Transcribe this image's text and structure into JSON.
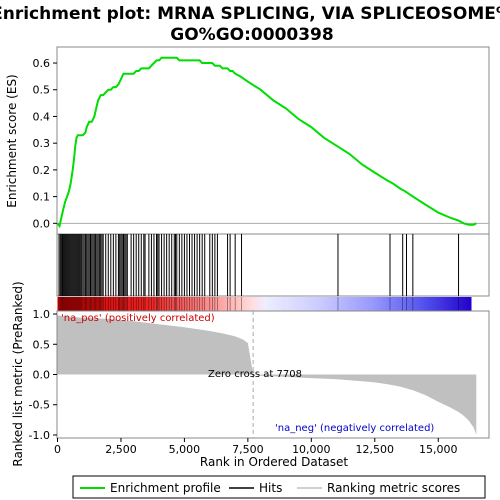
{
  "title_line1": "Enrichment plot: MRNA SPLICING, VIA SPLICEOSOME%",
  "title_line2": "GO%GO:0000398",
  "chart_data": {
    "type": "line",
    "xlabel": "Rank in Ordered Dataset",
    "x_range": [
      0,
      17000
    ],
    "x_ticks": [
      0,
      2500,
      5000,
      7500,
      10000,
      12500,
      15000
    ],
    "x_tick_labels": [
      "0",
      "2,500",
      "5,000",
      "7,500",
      "10,000",
      "12,500",
      "15,000"
    ],
    "top_panel": {
      "ylabel": "Enrichment score (ES)",
      "ylim": [
        -0.04,
        0.66
      ],
      "y_ticks": [
        0.0,
        0.1,
        0.2,
        0.3,
        0.4,
        0.5,
        0.6
      ],
      "y_tick_labels": [
        "0.0",
        "0.1",
        "0.2",
        "0.3",
        "0.4",
        "0.5",
        "0.6"
      ],
      "series": [
        {
          "name": "Enrichment profile",
          "color": "#00dd00",
          "x": [
            0,
            80,
            150,
            220,
            300,
            380,
            450,
            520,
            600,
            650,
            700,
            750,
            800,
            850,
            900,
            1000,
            1100,
            1150,
            1250,
            1350,
            1450,
            1550,
            1600,
            1650,
            1700,
            1800,
            1900,
            2000,
            2100,
            2200,
            2300,
            2400,
            2500,
            2550,
            2600,
            2650,
            2700,
            2800,
            2900,
            3000,
            3100,
            3200,
            3300,
            3400,
            3500,
            3600,
            3700,
            3800,
            3900,
            4000,
            4100,
            4200,
            4300,
            4400,
            4500,
            4600,
            4700,
            4800,
            4900,
            5000,
            5100,
            5200,
            5300,
            5400,
            5500,
            5600,
            5700,
            5800,
            5900,
            6000,
            6100,
            6200,
            6300,
            6400,
            6500,
            6600,
            6700,
            6800,
            6900,
            7000,
            7200,
            7500,
            8000,
            8500,
            9000,
            9500,
            10000,
            10500,
            11000,
            11500,
            12000,
            12500,
            13000,
            13200,
            13500,
            13700,
            14000,
            14500,
            15000,
            15500,
            15800,
            16000,
            16200,
            16400,
            16500
          ],
          "y": [
            0.0,
            -0.01,
            0.02,
            0.05,
            0.08,
            0.1,
            0.12,
            0.15,
            0.2,
            0.24,
            0.29,
            0.32,
            0.33,
            0.33,
            0.33,
            0.33,
            0.34,
            0.36,
            0.38,
            0.38,
            0.4,
            0.44,
            0.46,
            0.47,
            0.48,
            0.48,
            0.49,
            0.5,
            0.5,
            0.51,
            0.51,
            0.52,
            0.54,
            0.55,
            0.56,
            0.56,
            0.56,
            0.56,
            0.56,
            0.56,
            0.57,
            0.57,
            0.58,
            0.58,
            0.58,
            0.58,
            0.59,
            0.6,
            0.61,
            0.61,
            0.62,
            0.62,
            0.62,
            0.62,
            0.62,
            0.62,
            0.62,
            0.61,
            0.61,
            0.61,
            0.61,
            0.61,
            0.61,
            0.61,
            0.61,
            0.61,
            0.6,
            0.6,
            0.6,
            0.6,
            0.6,
            0.59,
            0.59,
            0.59,
            0.58,
            0.58,
            0.58,
            0.57,
            0.57,
            0.56,
            0.55,
            0.53,
            0.5,
            0.46,
            0.43,
            0.39,
            0.36,
            0.32,
            0.29,
            0.26,
            0.22,
            0.19,
            0.16,
            0.15,
            0.13,
            0.12,
            0.1,
            0.07,
            0.04,
            0.02,
            0.01,
            0.0,
            -0.005,
            -0.005,
            0.0
          ]
        }
      ]
    },
    "hits_panel": {
      "legend_label": "Hits",
      "hit_ranks": [
        60,
        110,
        150,
        190,
        220,
        260,
        300,
        340,
        380,
        420,
        460,
        500,
        540,
        580,
        620,
        660,
        700,
        740,
        780,
        820,
        860,
        900,
        950,
        1000,
        1050,
        1100,
        1150,
        1200,
        1250,
        1300,
        1350,
        1400,
        1450,
        1500,
        1550,
        1600,
        1650,
        1700,
        1750,
        1800,
        1900,
        2000,
        2100,
        2200,
        2300,
        2400,
        2450,
        2500,
        2550,
        2600,
        2650,
        2700,
        2750,
        2900,
        3000,
        3100,
        3200,
        3300,
        3400,
        3450,
        3600,
        3700,
        3800,
        3900,
        3950,
        4000,
        4100,
        4200,
        4300,
        4400,
        4500,
        4600,
        4650,
        4700,
        4800,
        4900,
        5000,
        5100,
        5200,
        5300,
        5400,
        5500,
        5600,
        5700,
        5800,
        6000,
        6100,
        6200,
        6300,
        6700,
        6800,
        7000,
        7250,
        11050,
        13100,
        13600,
        13750,
        14000,
        15800
      ]
    },
    "metric_panel": {
      "ylabel": "Ranked list metric (PreRanked)",
      "legend_label": "Ranking metric scores",
      "ylim": [
        -1.05,
        1.05
      ],
      "y_ticks": [
        1.0,
        0.5,
        0.0,
        -0.5,
        -1.0
      ],
      "y_tick_labels": [
        "1.0",
        "0.5",
        "0.0",
        "-0.5",
        "-1.0"
      ],
      "x": [
        0,
        300,
        600,
        1000,
        1500,
        2000,
        3000,
        4000,
        5000,
        6000,
        6500,
        7000,
        7300,
        7500,
        7708,
        8000,
        9000,
        10000,
        11000,
        12000,
        12500,
        13000,
        13500,
        14000,
        14500,
        15000,
        15500,
        15800,
        16000,
        16200,
        16400,
        16500
      ],
      "y": [
        0.98,
        0.96,
        0.95,
        0.94,
        0.93,
        0.92,
        0.88,
        0.83,
        0.78,
        0.72,
        0.68,
        0.63,
        0.58,
        0.52,
        0.0,
        -0.02,
        -0.04,
        -0.06,
        -0.08,
        -0.11,
        -0.13,
        -0.16,
        -0.2,
        -0.26,
        -0.34,
        -0.45,
        -0.55,
        -0.62,
        -0.68,
        -0.76,
        -0.88,
        -1.0
      ],
      "zero_cross_label": "Zero cross at 7708",
      "zero_cross_rank": 7708,
      "pos_label": "'na_pos' (positively correlated)",
      "neg_label": "'na_neg' (negatively correlated)"
    },
    "legend": {
      "placement": "bottom",
      "items": [
        "Enrichment profile",
        "Hits",
        "Ranking metric scores"
      ]
    }
  }
}
